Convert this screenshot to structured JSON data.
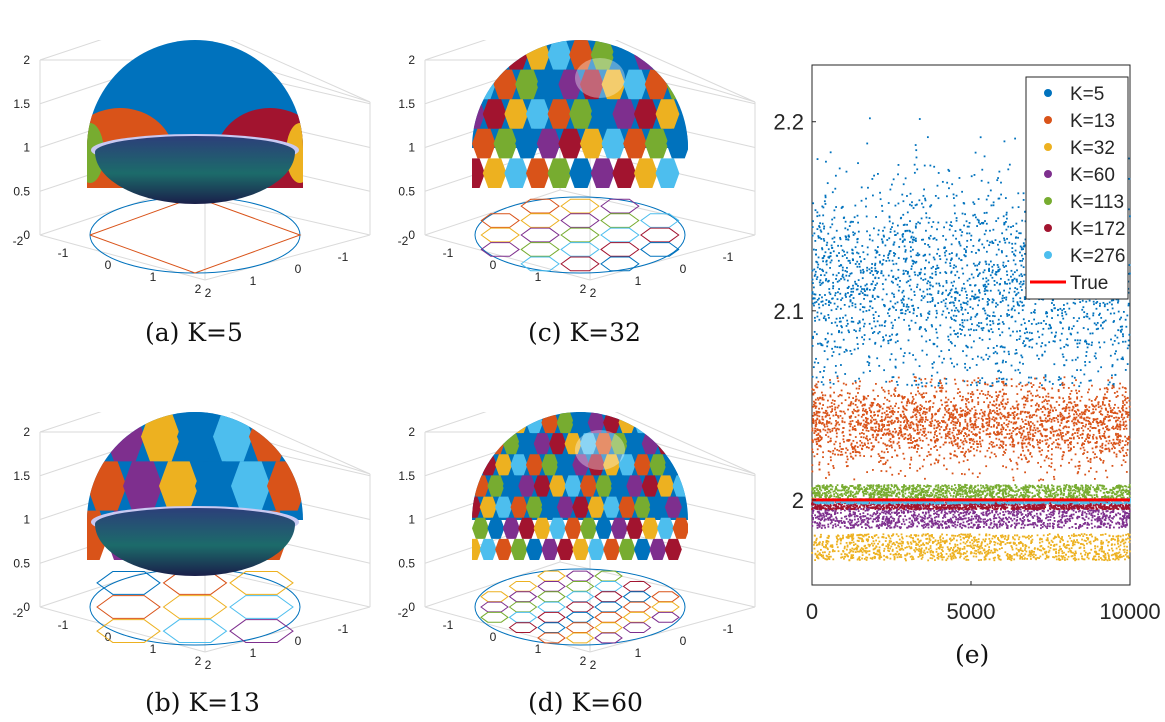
{
  "figure": {
    "panels": [
      {
        "id": "a",
        "caption": "(a) K=5",
        "z_ticks": [
          "0",
          "0.5",
          "1",
          "1.5",
          "2"
        ],
        "x_ticks": [
          "-2",
          "-1",
          "0",
          "1",
          "2"
        ],
        "y_ticks": [
          "2",
          "1",
          "0",
          "-1",
          "-2"
        ],
        "region_colors": [
          "#0072bd",
          "#d95319",
          "#a2142f",
          "#77ac30",
          "#edb120"
        ]
      },
      {
        "id": "c",
        "caption": "(c) K=32",
        "z_ticks": [
          "0",
          "0.5",
          "1",
          "1.5",
          "2"
        ],
        "x_ticks": [
          "-2",
          "-1",
          "0",
          "1",
          "2"
        ],
        "y_ticks": [
          "2",
          "1",
          "0",
          "-1",
          "-2"
        ],
        "region_colors": [
          "#0072bd",
          "#d95319",
          "#edb120",
          "#7e2f8e",
          "#77ac30",
          "#4dbeee",
          "#a2142f"
        ]
      },
      {
        "id": "b",
        "caption": "(b) K=13",
        "z_ticks": [
          "0",
          "0.5",
          "1",
          "1.5",
          "2"
        ],
        "x_ticks": [
          "-2",
          "-1",
          "0",
          "1",
          "2"
        ],
        "y_ticks": [
          "2",
          "1",
          "0",
          "-1",
          "-2"
        ],
        "region_colors": [
          "#0072bd",
          "#d95319",
          "#edb120",
          "#4dbeee",
          "#7e2f8e"
        ]
      },
      {
        "id": "d",
        "caption": "(d) K=60",
        "z_ticks": [
          "0",
          "0.5",
          "1",
          "1.5",
          "2"
        ],
        "x_ticks": [
          "-2",
          "-1",
          "0",
          "1",
          "2"
        ],
        "y_ticks": [
          "2",
          "1",
          "0",
          "-1",
          "-2"
        ],
        "region_colors": [
          "#0072bd",
          "#d95319",
          "#edb120",
          "#7e2f8e",
          "#77ac30",
          "#4dbeee",
          "#a2142f"
        ]
      }
    ],
    "panel_e_caption": "(e)"
  },
  "chart_data": {
    "type": "scatter",
    "title": "",
    "xlabel": "",
    "ylabel": "",
    "xlim": [
      0,
      10000
    ],
    "ylim": [
      1.955,
      2.23
    ],
    "x_ticks": [
      0,
      5000,
      10000
    ],
    "x_tick_labels": [
      "0",
      "5000",
      "10000"
    ],
    "y_ticks": [
      2,
      2.1,
      2.2
    ],
    "y_tick_labels": [
      "2",
      "2.1",
      "2.2"
    ],
    "grid": false,
    "legend_position": "top-right",
    "series": [
      {
        "name": "K=5",
        "color": "#0072bd",
        "marker": "dot",
        "y_center": 2.115,
        "y_spread": 0.05,
        "y_min": 2.06,
        "y_max": 2.205
      },
      {
        "name": "K=13",
        "color": "#d95319",
        "marker": "dot",
        "y_center": 2.04,
        "y_spread": 0.02,
        "y_min": 2.01,
        "y_max": 2.065
      },
      {
        "name": "K=32",
        "color": "#edb120",
        "marker": "dot",
        "y_center": 1.975,
        "y_spread": 0.005,
        "y_min": 1.968,
        "y_max": 1.982
      },
      {
        "name": "K=60",
        "color": "#7e2f8e",
        "marker": "dot",
        "y_center": 1.991,
        "y_spread": 0.004,
        "y_min": 1.985,
        "y_max": 1.996
      },
      {
        "name": "K=113",
        "color": "#77ac30",
        "marker": "dot",
        "y_center": 2.004,
        "y_spread": 0.002,
        "y_min": 2.001,
        "y_max": 2.008
      },
      {
        "name": "K=172",
        "color": "#a2142f",
        "marker": "dot",
        "y_center": 1.997,
        "y_spread": 0.0015,
        "y_min": 1.995,
        "y_max": 1.999
      },
      {
        "name": "K=276",
        "color": "#4dbeee",
        "marker": "dot",
        "y_center": 1.999,
        "y_spread": 0.001,
        "y_min": 1.998,
        "y_max": 2.0005
      },
      {
        "name": "True",
        "color": "#ff0000",
        "marker": "line",
        "value": 2.0
      }
    ]
  }
}
